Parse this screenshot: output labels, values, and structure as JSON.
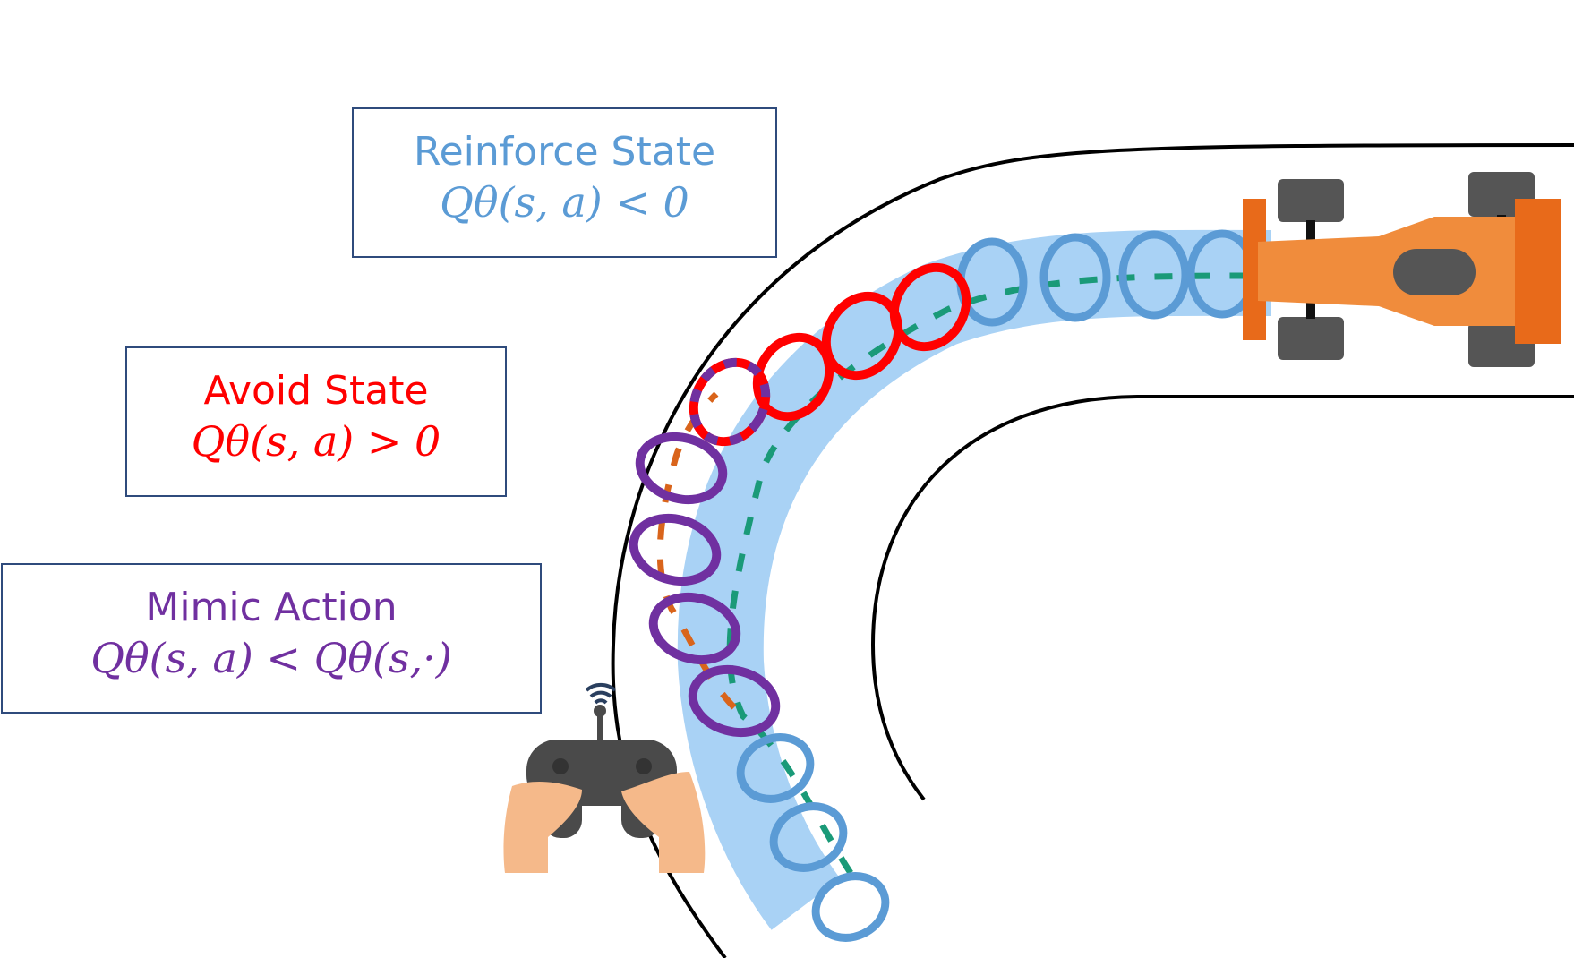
{
  "labels": {
    "reinforce": {
      "title": "Reinforce State",
      "formula": "Qθ(s, a) < 0",
      "color": "#5b9bd5"
    },
    "avoid": {
      "title": "Avoid State",
      "formula": "Qθ(s, a) > 0",
      "color": "#ff0000"
    },
    "mimic": {
      "title": "Mimic Action",
      "formula": "Qθ(s, a) < Qθ(s,·)",
      "color": "#7030a0"
    }
  },
  "colors": {
    "track_line": "#000000",
    "path_band": "#a9d2f5",
    "trajectory_green": "#1a9a78",
    "trajectory_orange": "#d9641b",
    "car_body": "#f08c3c",
    "car_wing": "#e86a1a",
    "wheel": "#555555",
    "hand": "#f5b98a",
    "controller": "#4a4a4a"
  },
  "icons": [
    "race-car-icon",
    "game-controller-icon",
    "wifi-signal-icon"
  ]
}
